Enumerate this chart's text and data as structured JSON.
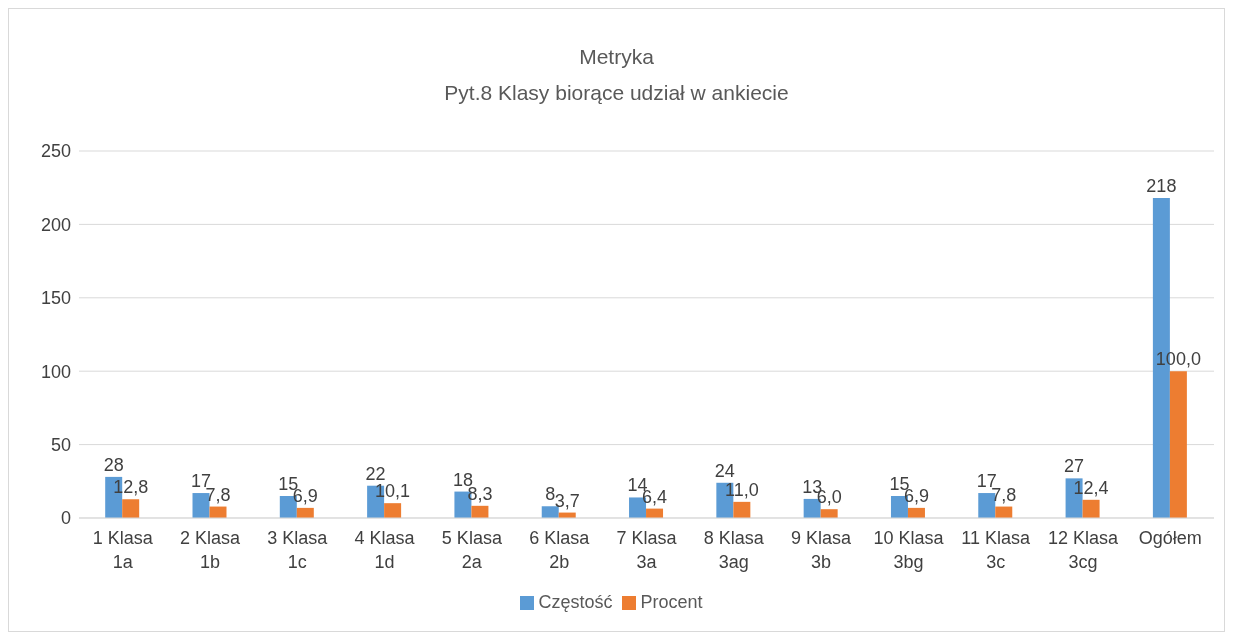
{
  "chart_data": {
    "type": "bar",
    "title": "Metryka",
    "subtitle": "Pyt.8 Klasy biorące udział w ankiecie",
    "categories": [
      "1 Klasa 1a",
      "2 Klasa 1b",
      "3 Klasa 1c",
      "4 Klasa 1d",
      "5 Klasa 2a",
      "6 Klasa 2b",
      "7 Klasa 3a",
      "8 Klasa 3ag",
      "9 Klasa 3b",
      "10 Klasa 3bg",
      "11 Klasa 3c",
      "12 Klasa 3cg",
      "Ogółem"
    ],
    "series": [
      {
        "name": "Częstość",
        "color": "#5b9bd5",
        "values": [
          28,
          17,
          15,
          22,
          18,
          8,
          14,
          24,
          13,
          15,
          17,
          27,
          218
        ],
        "value_labels": [
          "28",
          "17",
          "15",
          "22",
          "18",
          "8",
          "14",
          "24",
          "13",
          "15",
          "17",
          "27",
          "218"
        ]
      },
      {
        "name": "Procent",
        "color": "#ed7d31",
        "values": [
          12.8,
          7.8,
          6.9,
          10.1,
          8.3,
          3.7,
          6.4,
          11.0,
          6.0,
          6.9,
          7.8,
          12.4,
          100.0
        ],
        "value_labels": [
          "12,8",
          "7,8",
          "6,9",
          "10,1",
          "8,3",
          "3,7",
          "6,4",
          "11,0",
          "6,0",
          "6,9",
          "7,8",
          "12,4",
          "100,0"
        ]
      }
    ],
    "ylim": [
      0,
      250
    ],
    "yticks": [
      0,
      50,
      100,
      150,
      200,
      250
    ],
    "grid": "y",
    "legend": "bottom"
  }
}
